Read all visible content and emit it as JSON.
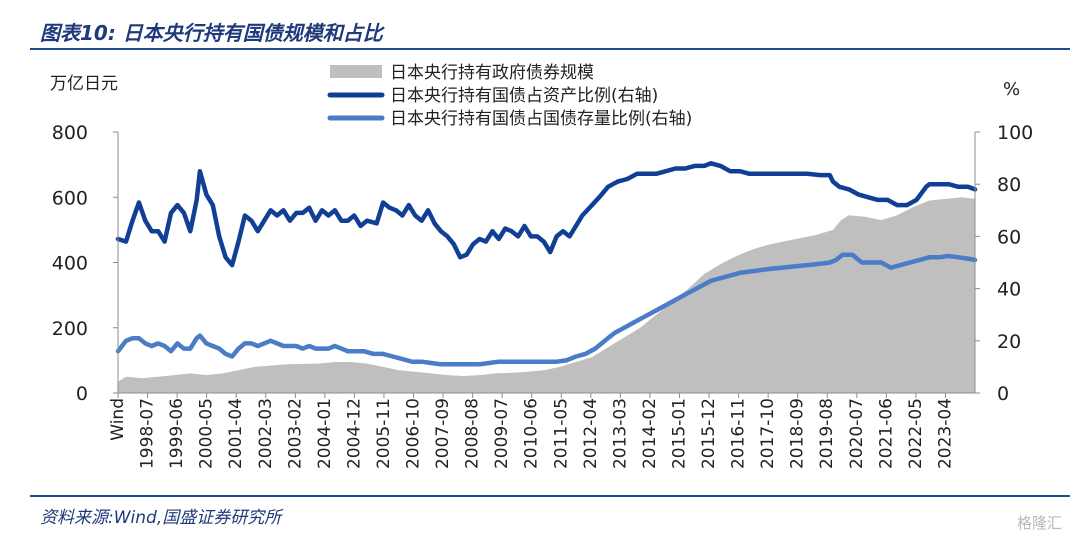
{
  "header": {
    "title": "图表10:  日本央行持有国债规模和占比"
  },
  "footer": {
    "source": "资料来源:Wind,国盛证券研究所",
    "watermark": "格隆汇"
  },
  "chart_data": {
    "type": "area",
    "left_axis_unit": "万亿日元",
    "right_axis_unit": "%",
    "ylim_left": [
      0,
      800
    ],
    "ylim_right": [
      0,
      100
    ],
    "yticks_left": [
      0,
      200,
      400,
      600,
      800
    ],
    "yticks_right": [
      0,
      20,
      40,
      60,
      80,
      100
    ],
    "x_start_label": "Wind",
    "x_tick_labels": [
      "1998-07",
      "1999-06",
      "2000-05",
      "2001-04",
      "2002-03",
      "2003-02",
      "2004-01",
      "2004-12",
      "2005-11",
      "2006-10",
      "2007-09",
      "2008-08",
      "2009-07",
      "2010-06",
      "2011-05",
      "2012-04",
      "2013-03",
      "2014-02",
      "2015-01",
      "2015-12",
      "2016-11",
      "2017-10",
      "2018-09",
      "2019-08",
      "2020-07",
      "2021-06",
      "2022-05",
      "2023-04"
    ],
    "x_start": 1997.75,
    "x_end": 2024.42,
    "legend_position": "top-center",
    "grid": false,
    "series": [
      {
        "name": "日本央行持有政府债券规模",
        "axis": "left",
        "style": "area",
        "color": "#bfbfbf",
        "points": [
          [
            1997.75,
            35
          ],
          [
            1998.0,
            50
          ],
          [
            1998.5,
            45
          ],
          [
            1999.0,
            50
          ],
          [
            1999.5,
            55
          ],
          [
            2000.0,
            60
          ],
          [
            2000.5,
            55
          ],
          [
            2001.0,
            60
          ],
          [
            2001.5,
            70
          ],
          [
            2002.0,
            80
          ],
          [
            2003.0,
            88
          ],
          [
            2004.0,
            90
          ],
          [
            2004.5,
            95
          ],
          [
            2005.0,
            95
          ],
          [
            2005.5,
            90
          ],
          [
            2006.0,
            80
          ],
          [
            2006.5,
            70
          ],
          [
            2007.0,
            65
          ],
          [
            2007.5,
            60
          ],
          [
            2008.0,
            55
          ],
          [
            2008.5,
            52
          ],
          [
            2009.0,
            55
          ],
          [
            2009.5,
            60
          ],
          [
            2010.0,
            62
          ],
          [
            2010.5,
            65
          ],
          [
            2011.0,
            70
          ],
          [
            2011.5,
            80
          ],
          [
            2012.0,
            95
          ],
          [
            2012.5,
            110
          ],
          [
            2013.0,
            140
          ],
          [
            2013.5,
            170
          ],
          [
            2014.0,
            200
          ],
          [
            2014.5,
            240
          ],
          [
            2015.0,
            280
          ],
          [
            2015.5,
            320
          ],
          [
            2016.0,
            365
          ],
          [
            2016.5,
            395
          ],
          [
            2017.0,
            420
          ],
          [
            2017.5,
            440
          ],
          [
            2018.0,
            455
          ],
          [
            2018.5,
            465
          ],
          [
            2019.0,
            475
          ],
          [
            2019.5,
            485
          ],
          [
            2020.0,
            500
          ],
          [
            2020.25,
            530
          ],
          [
            2020.5,
            545
          ],
          [
            2021.0,
            540
          ],
          [
            2021.5,
            530
          ],
          [
            2022.0,
            545
          ],
          [
            2022.5,
            570
          ],
          [
            2023.0,
            590
          ],
          [
            2023.5,
            595
          ],
          [
            2024.0,
            600
          ],
          [
            2024.42,
            595
          ]
        ]
      },
      {
        "name": "日本央行持有国债占资产比例(右轴)",
        "axis": "right",
        "style": "line",
        "color": "#123f96",
        "points": [
          [
            1997.75,
            59
          ],
          [
            1998.0,
            58
          ],
          [
            1998.2,
            66
          ],
          [
            1998.4,
            73
          ],
          [
            1998.6,
            66
          ],
          [
            1998.8,
            62
          ],
          [
            1999.0,
            62
          ],
          [
            1999.2,
            58
          ],
          [
            1999.4,
            69
          ],
          [
            1999.6,
            72
          ],
          [
            1999.8,
            69
          ],
          [
            2000.0,
            62
          ],
          [
            2000.2,
            74
          ],
          [
            2000.3,
            85
          ],
          [
            2000.5,
            76
          ],
          [
            2000.7,
            72
          ],
          [
            2000.9,
            60
          ],
          [
            2001.1,
            52
          ],
          [
            2001.3,
            49
          ],
          [
            2001.5,
            58
          ],
          [
            2001.7,
            68
          ],
          [
            2001.9,
            66
          ],
          [
            2002.1,
            62
          ],
          [
            2002.3,
            66
          ],
          [
            2002.5,
            70
          ],
          [
            2002.7,
            68
          ],
          [
            2002.9,
            70
          ],
          [
            2003.1,
            66
          ],
          [
            2003.3,
            69
          ],
          [
            2003.5,
            69
          ],
          [
            2003.7,
            71
          ],
          [
            2003.9,
            66
          ],
          [
            2004.1,
            70
          ],
          [
            2004.3,
            68
          ],
          [
            2004.5,
            70
          ],
          [
            2004.7,
            66
          ],
          [
            2004.9,
            66
          ],
          [
            2005.1,
            68
          ],
          [
            2005.3,
            64
          ],
          [
            2005.5,
            66
          ],
          [
            2005.8,
            65
          ],
          [
            2006.0,
            73
          ],
          [
            2006.2,
            71
          ],
          [
            2006.4,
            70
          ],
          [
            2006.6,
            68
          ],
          [
            2006.8,
            72
          ],
          [
            2007.0,
            68
          ],
          [
            2007.2,
            66
          ],
          [
            2007.4,
            70
          ],
          [
            2007.6,
            65
          ],
          [
            2007.8,
            62
          ],
          [
            2008.0,
            60
          ],
          [
            2008.2,
            57
          ],
          [
            2008.4,
            52
          ],
          [
            2008.6,
            53
          ],
          [
            2008.8,
            57
          ],
          [
            2009.0,
            59
          ],
          [
            2009.2,
            58
          ],
          [
            2009.4,
            62
          ],
          [
            2009.6,
            59
          ],
          [
            2009.8,
            63
          ],
          [
            2010.0,
            62
          ],
          [
            2010.2,
            60
          ],
          [
            2010.4,
            64
          ],
          [
            2010.6,
            60
          ],
          [
            2010.8,
            60
          ],
          [
            2011.0,
            58
          ],
          [
            2011.2,
            54
          ],
          [
            2011.4,
            60
          ],
          [
            2011.6,
            62
          ],
          [
            2011.8,
            60
          ],
          [
            2012.0,
            64
          ],
          [
            2012.2,
            68
          ],
          [
            2012.5,
            72
          ],
          [
            2012.8,
            76
          ],
          [
            2013.0,
            79
          ],
          [
            2013.3,
            81
          ],
          [
            2013.6,
            82
          ],
          [
            2013.9,
            84
          ],
          [
            2014.2,
            84
          ],
          [
            2014.5,
            84
          ],
          [
            2014.8,
            85
          ],
          [
            2015.1,
            86
          ],
          [
            2015.4,
            86
          ],
          [
            2015.7,
            87
          ],
          [
            2016.0,
            87
          ],
          [
            2016.2,
            88
          ],
          [
            2016.5,
            87
          ],
          [
            2016.8,
            85
          ],
          [
            2017.1,
            85
          ],
          [
            2017.4,
            84
          ],
          [
            2017.7,
            84
          ],
          [
            2018.0,
            84
          ],
          [
            2018.4,
            84
          ],
          [
            2018.8,
            84
          ],
          [
            2019.2,
            84
          ],
          [
            2019.6,
            83.5
          ],
          [
            2019.9,
            83.5
          ],
          [
            2020.0,
            81
          ],
          [
            2020.2,
            79
          ],
          [
            2020.5,
            78
          ],
          [
            2020.8,
            76
          ],
          [
            2021.1,
            75
          ],
          [
            2021.4,
            74
          ],
          [
            2021.7,
            74
          ],
          [
            2022.0,
            72
          ],
          [
            2022.3,
            72
          ],
          [
            2022.6,
            74
          ],
          [
            2022.9,
            79
          ],
          [
            2023.0,
            80
          ],
          [
            2023.3,
            80
          ],
          [
            2023.6,
            80
          ],
          [
            2023.9,
            79
          ],
          [
            2024.2,
            79
          ],
          [
            2024.42,
            78
          ]
        ]
      },
      {
        "name": "日本央行持有国债占国债存量比例(右轴)",
        "axis": "right",
        "style": "line",
        "color": "#4a7cc7",
        "points": [
          [
            1997.75,
            16
          ],
          [
            1998.0,
            20
          ],
          [
            1998.2,
            21
          ],
          [
            1998.4,
            21
          ],
          [
            1998.6,
            19
          ],
          [
            1998.8,
            18
          ],
          [
            1999.0,
            19
          ],
          [
            1999.2,
            18
          ],
          [
            1999.4,
            16
          ],
          [
            1999.6,
            19
          ],
          [
            1999.8,
            17
          ],
          [
            2000.0,
            17
          ],
          [
            2000.2,
            21
          ],
          [
            2000.3,
            22
          ],
          [
            2000.5,
            19
          ],
          [
            2000.7,
            18
          ],
          [
            2000.9,
            17
          ],
          [
            2001.1,
            15
          ],
          [
            2001.3,
            14
          ],
          [
            2001.5,
            17
          ],
          [
            2001.7,
            19
          ],
          [
            2001.9,
            19
          ],
          [
            2002.1,
            18
          ],
          [
            2002.3,
            19
          ],
          [
            2002.5,
            20
          ],
          [
            2002.7,
            19
          ],
          [
            2002.9,
            18
          ],
          [
            2003.1,
            18
          ],
          [
            2003.3,
            18
          ],
          [
            2003.5,
            17
          ],
          [
            2003.7,
            18
          ],
          [
            2003.9,
            17
          ],
          [
            2004.1,
            17
          ],
          [
            2004.3,
            17
          ],
          [
            2004.5,
            18
          ],
          [
            2004.7,
            17
          ],
          [
            2004.9,
            16
          ],
          [
            2005.1,
            16
          ],
          [
            2005.4,
            16
          ],
          [
            2005.7,
            15
          ],
          [
            2006.0,
            15
          ],
          [
            2006.3,
            14
          ],
          [
            2006.6,
            13
          ],
          [
            2006.9,
            12
          ],
          [
            2007.2,
            12
          ],
          [
            2007.5,
            11.5
          ],
          [
            2007.8,
            11
          ],
          [
            2008.1,
            11
          ],
          [
            2008.4,
            11
          ],
          [
            2008.7,
            11
          ],
          [
            2009.0,
            11
          ],
          [
            2009.3,
            11.5
          ],
          [
            2009.6,
            12
          ],
          [
            2009.9,
            12
          ],
          [
            2010.2,
            12
          ],
          [
            2010.5,
            12
          ],
          [
            2010.8,
            12
          ],
          [
            2011.1,
            12
          ],
          [
            2011.4,
            12
          ],
          [
            2011.7,
            12.5
          ],
          [
            2012.0,
            14
          ],
          [
            2012.3,
            15
          ],
          [
            2012.6,
            17
          ],
          [
            2012.9,
            20
          ],
          [
            2013.2,
            23
          ],
          [
            2013.5,
            25
          ],
          [
            2013.8,
            27
          ],
          [
            2014.1,
            29
          ],
          [
            2014.4,
            31
          ],
          [
            2014.7,
            33
          ],
          [
            2015.0,
            35
          ],
          [
            2015.3,
            37
          ],
          [
            2015.6,
            39
          ],
          [
            2015.9,
            41
          ],
          [
            2016.2,
            43
          ],
          [
            2016.5,
            44
          ],
          [
            2016.8,
            45
          ],
          [
            2017.1,
            46
          ],
          [
            2017.4,
            46.5
          ],
          [
            2017.7,
            47
          ],
          [
            2018.0,
            47.5
          ],
          [
            2018.4,
            48
          ],
          [
            2018.8,
            48.5
          ],
          [
            2019.2,
            49
          ],
          [
            2019.6,
            49.5
          ],
          [
            2019.9,
            50
          ],
          [
            2020.1,
            51
          ],
          [
            2020.3,
            53
          ],
          [
            2020.6,
            53
          ],
          [
            2020.9,
            50
          ],
          [
            2021.2,
            50
          ],
          [
            2021.5,
            50
          ],
          [
            2021.8,
            48
          ],
          [
            2022.1,
            49
          ],
          [
            2022.4,
            50
          ],
          [
            2022.7,
            51
          ],
          [
            2023.0,
            52
          ],
          [
            2023.3,
            52
          ],
          [
            2023.6,
            52.5
          ],
          [
            2023.9,
            52
          ],
          [
            2024.2,
            51.5
          ],
          [
            2024.42,
            51
          ]
        ]
      }
    ]
  }
}
